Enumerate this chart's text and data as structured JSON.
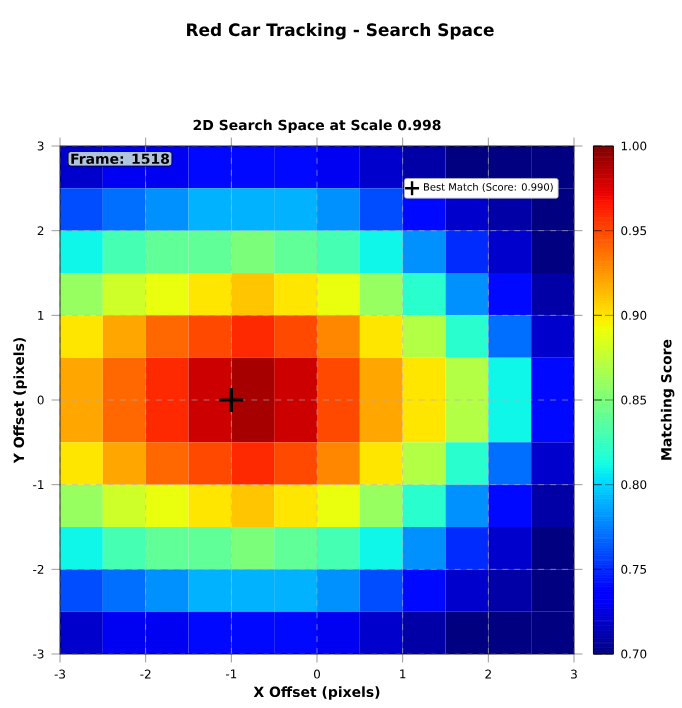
{
  "chart_data": {
    "type": "heatmap",
    "title": "Red Car Tracking - Search Space",
    "subtitle": "2D Search Space at Scale 0.998",
    "xlabel": "X Offset (pixels)",
    "ylabel": "Y Offset (pixels)",
    "clabel": "Matching Score",
    "annotations": [
      "Frame: 1518"
    ],
    "cells": [
      [
        0.72,
        0.73,
        0.73,
        0.74,
        0.74,
        0.74,
        0.73,
        0.72,
        0.71,
        0.7,
        0.7,
        0.7
      ],
      [
        0.76,
        0.77,
        0.78,
        0.79,
        0.79,
        0.79,
        0.78,
        0.76,
        0.74,
        0.72,
        0.71,
        0.7
      ],
      [
        0.81,
        0.83,
        0.84,
        0.84,
        0.85,
        0.84,
        0.83,
        0.81,
        0.78,
        0.75,
        0.72,
        0.7
      ],
      [
        0.86,
        0.88,
        0.89,
        0.9,
        0.91,
        0.9,
        0.89,
        0.86,
        0.82,
        0.78,
        0.74,
        0.71
      ],
      [
        0.9,
        0.92,
        0.94,
        0.95,
        0.96,
        0.95,
        0.93,
        0.9,
        0.87,
        0.82,
        0.77,
        0.72
      ],
      [
        0.92,
        0.94,
        0.96,
        0.98,
        0.99,
        0.98,
        0.95,
        0.92,
        0.9,
        0.87,
        0.81,
        0.74
      ],
      [
        0.92,
        0.94,
        0.96,
        0.98,
        0.99,
        0.98,
        0.95,
        0.92,
        0.9,
        0.87,
        0.81,
        0.74
      ],
      [
        0.9,
        0.92,
        0.94,
        0.95,
        0.96,
        0.95,
        0.93,
        0.9,
        0.87,
        0.82,
        0.77,
        0.72
      ],
      [
        0.86,
        0.88,
        0.89,
        0.9,
        0.91,
        0.9,
        0.89,
        0.86,
        0.82,
        0.78,
        0.74,
        0.71
      ],
      [
        0.81,
        0.83,
        0.84,
        0.84,
        0.85,
        0.84,
        0.83,
        0.81,
        0.78,
        0.75,
        0.72,
        0.7
      ],
      [
        0.76,
        0.77,
        0.78,
        0.79,
        0.79,
        0.79,
        0.78,
        0.76,
        0.74,
        0.72,
        0.71,
        0.7
      ],
      [
        0.72,
        0.73,
        0.73,
        0.74,
        0.74,
        0.74,
        0.73,
        0.72,
        0.71,
        0.7,
        0.7,
        0.7
      ]
    ],
    "xlim": [
      -3,
      3
    ],
    "ylim": [
      -3,
      3
    ],
    "xticks": [
      -3,
      -2,
      -1,
      0,
      1,
      2,
      3
    ],
    "yticks": [
      -3,
      -2,
      -1,
      0,
      1,
      2,
      3
    ],
    "clim": [
      0.7,
      1.0
    ],
    "cticks": [
      {
        "value": 0.7,
        "label": "0.70"
      },
      {
        "value": 0.75,
        "label": "0.75"
      },
      {
        "value": 0.8,
        "label": "0.80"
      },
      {
        "value": 0.85,
        "label": "0.85"
      },
      {
        "value": 0.9,
        "label": "0.90"
      },
      {
        "value": 0.95,
        "label": "0.95"
      },
      {
        "value": 1.0,
        "label": "1.00"
      }
    ],
    "series": [
      {
        "type": "scatter",
        "name": "Best Match (Score: 0.990)",
        "x": [
          -1
        ],
        "values": [
          0
        ],
        "color": "#000000",
        "marker": "cross"
      }
    ],
    "grid": true,
    "legend": "top right"
  }
}
